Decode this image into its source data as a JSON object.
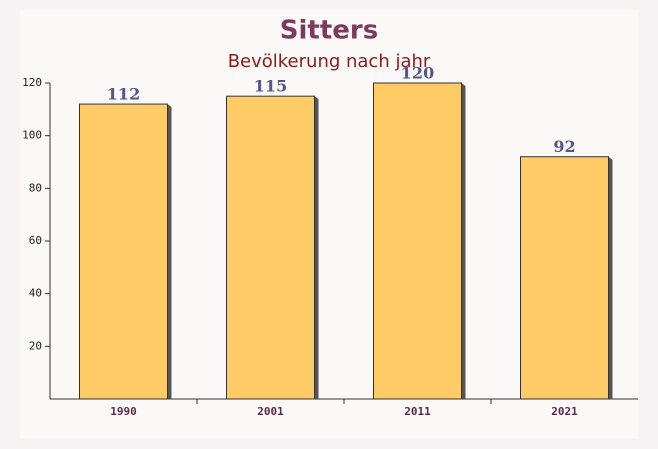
{
  "chart_data": {
    "type": "bar",
    "title": "Sitters",
    "subtitle": "Bevölkerung nach jahr",
    "categories": [
      "1990",
      "2001",
      "2011",
      "2021"
    ],
    "values": [
      112,
      115,
      120,
      92
    ],
    "color": "#ffc34d",
    "ylim": [
      0,
      120
    ],
    "yticks": [
      20,
      40,
      60,
      80,
      100,
      120
    ]
  }
}
